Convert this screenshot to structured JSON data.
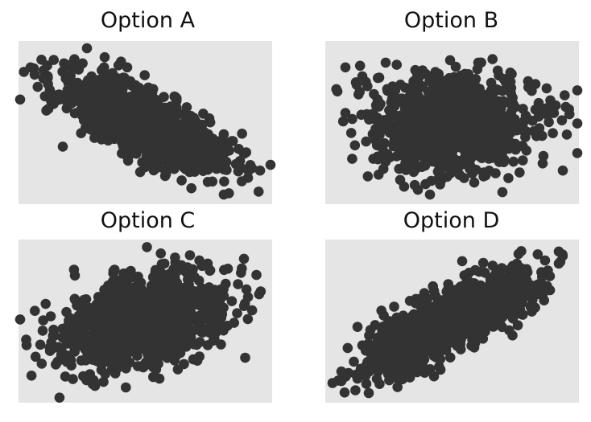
{
  "colors": {
    "background": "#ffffff",
    "panel_bg": "#e5e5e5",
    "point": "#333333"
  },
  "chart_data": [
    {
      "type": "scatter",
      "title": "Option A",
      "xlabel": "",
      "ylabel": "",
      "grid": false,
      "correlation": -0.7,
      "n_points": 1000,
      "xlim": [
        -3.1,
        3.2
      ],
      "ylim": [
        -3.4,
        3.4
      ],
      "outliers": [
        {
          "x": -1.4,
          "y": 3.1
        },
        {
          "x": -2.8,
          "y": 2.3
        },
        {
          "x": -2.7,
          "y": 2.0
        },
        {
          "x": -2.0,
          "y": -1.0
        },
        {
          "x": 2.5,
          "y": -1.3
        },
        {
          "x": 2.9,
          "y": -2.0
        },
        {
          "x": 2.4,
          "y": -1.6
        },
        {
          "x": 2.7,
          "y": -1.9
        },
        {
          "x": 2.0,
          "y": -3.0
        },
        {
          "x": 2.6,
          "y": -2.3
        },
        {
          "x": 1.0,
          "y": -1.6
        },
        {
          "x": -0.4,
          "y": 2.3
        }
      ]
    },
    {
      "type": "scatter",
      "title": "Option B",
      "xlabel": "",
      "ylabel": "",
      "grid": false,
      "correlation": 0.0,
      "n_points": 1000,
      "xlim": [
        -3.1,
        3.2
      ],
      "ylim": [
        -3.4,
        3.4
      ],
      "outliers": [
        {
          "x": -2.6,
          "y": 2.3
        },
        {
          "x": -2.8,
          "y": 1.3
        },
        {
          "x": -1.6,
          "y": 2.5
        },
        {
          "x": 0.0,
          "y": 2.6
        },
        {
          "x": 0.7,
          "y": 2.5
        },
        {
          "x": 2.4,
          "y": 0.6
        },
        {
          "x": 2.9,
          "y": -0.5
        },
        {
          "x": 2.8,
          "y": -2.0
        },
        {
          "x": 2.3,
          "y": -1.7
        },
        {
          "x": -0.8,
          "y": -2.8
        },
        {
          "x": 0.6,
          "y": -2.5
        },
        {
          "x": 1.3,
          "y": -2.9
        },
        {
          "x": -2.6,
          "y": 0.4
        },
        {
          "x": -0.5,
          "y": -3.0
        }
      ]
    },
    {
      "type": "scatter",
      "title": "Option C",
      "xlabel": "",
      "ylabel": "",
      "grid": false,
      "correlation": 0.35,
      "n_points": 1000,
      "xlim": [
        -3.1,
        3.2
      ],
      "ylim": [
        -3.4,
        3.4
      ],
      "outliers": [
        {
          "x": -2.9,
          "y": -1.0
        },
        {
          "x": -2.5,
          "y": -0.4
        },
        {
          "x": -2.3,
          "y": 0.2
        },
        {
          "x": -2.2,
          "y": -0.6
        },
        {
          "x": -1.9,
          "y": -1.7
        },
        {
          "x": -1.2,
          "y": -2.7
        },
        {
          "x": 0.4,
          "y": -2.4
        },
        {
          "x": 2.5,
          "y": 2.6
        },
        {
          "x": 1.6,
          "y": 2.4
        },
        {
          "x": 2.6,
          "y": 1.0
        },
        {
          "x": -1.7,
          "y": 1.9
        },
        {
          "x": 1.6,
          "y": -1.0
        }
      ]
    },
    {
      "type": "scatter",
      "title": "Option D",
      "xlabel": "",
      "ylabel": "",
      "grid": false,
      "correlation": 0.75,
      "n_points": 1000,
      "xlim": [
        -3.1,
        3.2
      ],
      "ylim": [
        -3.4,
        3.4
      ],
      "outliers": [
        {
          "x": -2.7,
          "y": -2.5
        },
        {
          "x": -2.7,
          "y": -2.1
        },
        {
          "x": -2.3,
          "y": -2.4
        },
        {
          "x": 2.7,
          "y": 2.9
        },
        {
          "x": 2.7,
          "y": 2.4
        },
        {
          "x": 1.7,
          "y": 2.8
        },
        {
          "x": 0.3,
          "y": 2.5
        },
        {
          "x": 2.3,
          "y": 1.1
        },
        {
          "x": 2.0,
          "y": 0.6
        },
        {
          "x": 0.6,
          "y": -1.1
        },
        {
          "x": -0.4,
          "y": -2.3
        },
        {
          "x": -1.5,
          "y": 0.0
        }
      ]
    }
  ]
}
